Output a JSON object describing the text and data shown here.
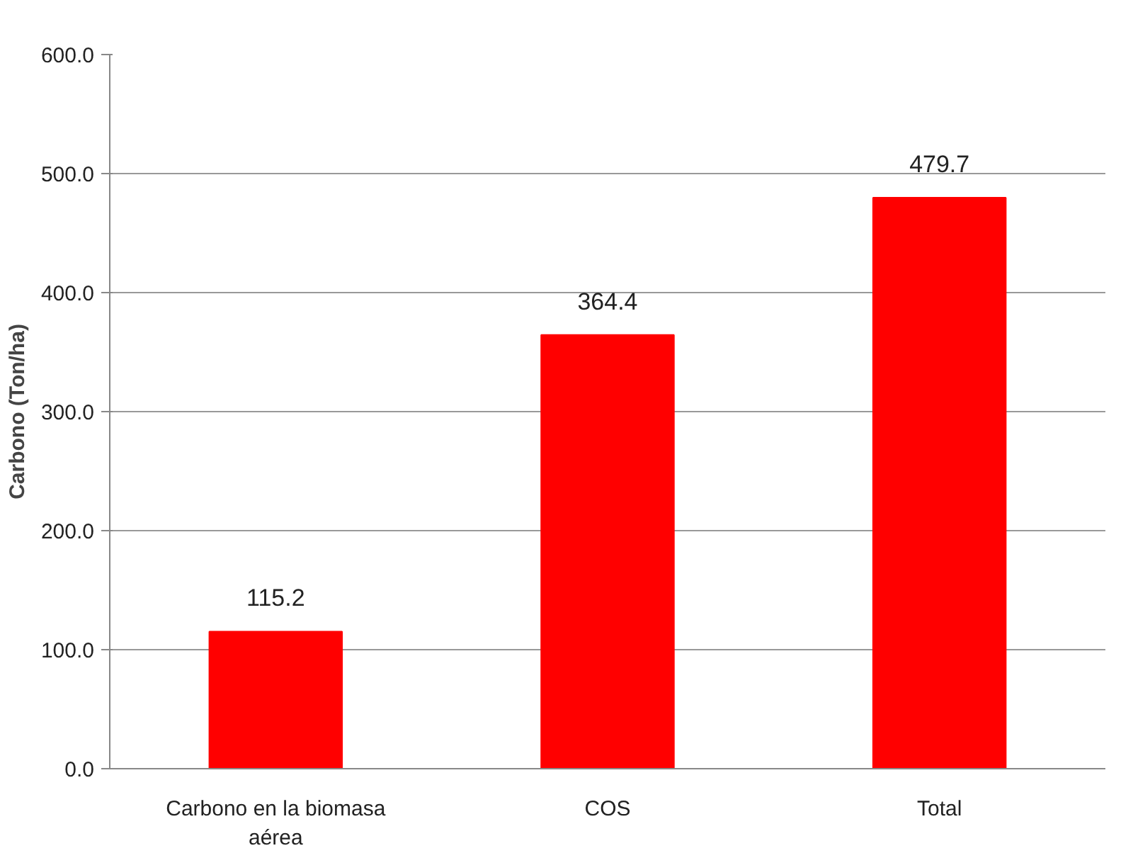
{
  "chart_data": {
    "type": "bar",
    "ylabel": "Carbono (Ton/ha)",
    "categories": [
      "Carbono en la biomasa aérea",
      "COS",
      "Total"
    ],
    "values": [
      115.2,
      364.4,
      479.7
    ],
    "color": "#ff0000",
    "ylim": [
      0,
      600
    ],
    "yticks": [
      {
        "value": 0,
        "label": "0.0"
      },
      {
        "value": 100,
        "label": "100.0"
      },
      {
        "value": 200,
        "label": "200.0"
      },
      {
        "value": 300,
        "label": "300.0"
      },
      {
        "value": 400,
        "label": "400.0"
      },
      {
        "value": 500,
        "label": "500.0"
      },
      {
        "value": 600,
        "label": "600.0"
      }
    ],
    "grid": "y",
    "data_labels": true
  }
}
